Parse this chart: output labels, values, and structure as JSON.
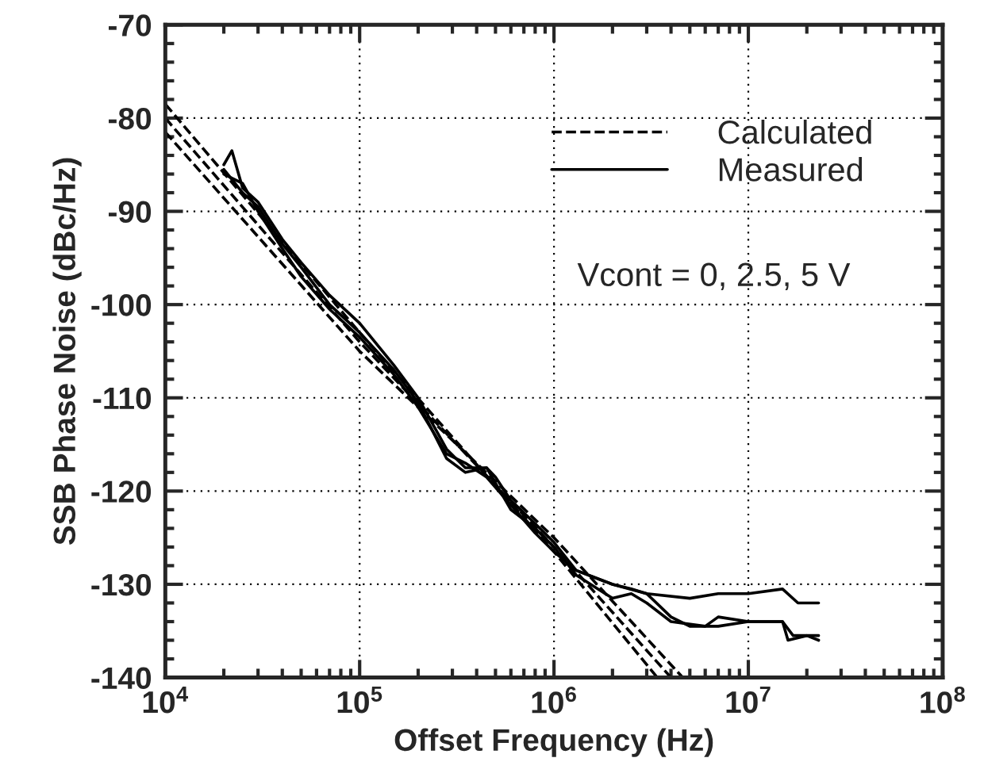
{
  "chart_data": {
    "type": "line",
    "xlabel": "Offset Frequency (Hz)",
    "ylabel": "SSB Phase Noise (dBc/Hz)",
    "log": "x",
    "xlim": [
      10000,
      100000000
    ],
    "ylim": [
      -140,
      -70
    ],
    "xticks": [
      {
        "value": 10000,
        "label": "10$^{4}$"
      },
      {
        "value": 100000,
        "label": "10$^{5}$"
      },
      {
        "value": 1000000,
        "label": "10$^{6}$"
      },
      {
        "value": 10000000,
        "label": "10$^{7}$"
      },
      {
        "value": 100000000,
        "label": "10$^{8}$"
      }
    ],
    "yticks": [
      -140,
      -130,
      -120,
      -110,
      -100,
      -90,
      -80,
      -70
    ],
    "grid": true,
    "legend": "top right",
    "annotations": [
      "Vcont = 0, 2.5, 5 V"
    ],
    "series": [
      {
        "name": "Calculated",
        "color": "#000000",
        "line_style": "dashed",
        "x": [
          10000,
          100000,
          1000000,
          3400000
        ],
        "values": [
          -78.5,
          -103,
          -126.5,
          -140
        ]
      },
      {
        "color": "#000000",
        "line_style": "dashed",
        "x": [
          10000,
          100000,
          1000000,
          4000000
        ],
        "values": [
          -80,
          -104,
          -126,
          -140
        ]
      },
      {
        "color": "#000000",
        "line_style": "dashed",
        "x": [
          10000,
          100000,
          1000000,
          4600000
        ],
        "values": [
          -81.5,
          -105,
          -125,
          -140
        ]
      },
      {
        "name": "Measured",
        "color": "#000000",
        "line_style": "solid",
        "x": [
          20000,
          22000,
          25000,
          30000,
          40000,
          50000,
          70000,
          100000,
          150000,
          200000,
          280000,
          350000,
          450000,
          500000,
          600000,
          800000,
          1000000,
          1300000,
          2000000,
          2500000,
          3000000,
          5000000,
          7000000,
          10000000,
          15000000,
          18000000,
          23000000
        ],
        "values": [
          -85,
          -83.5,
          -87.5,
          -89,
          -93,
          -95.5,
          -99,
          -102,
          -106.5,
          -110,
          -115.5,
          -117.5,
          -117.5,
          -118.5,
          -121,
          -123.5,
          -125.5,
          -128.5,
          -130,
          -130.5,
          -131,
          -131.5,
          -131,
          -131,
          -130.5,
          -132,
          -132
        ]
      },
      {
        "color": "#000000",
        "line_style": "solid",
        "x": [
          20000,
          25000,
          30000,
          40000,
          50000,
          70000,
          100000,
          150000,
          200000,
          280000,
          350000,
          450000,
          600000,
          800000,
          1000000,
          1300000,
          2000000,
          2500000,
          3000000,
          4000000,
          6000000,
          7000000,
          10000000,
          15000000,
          17000000,
          23000000
        ],
        "values": [
          -85.5,
          -88,
          -89.5,
          -93.5,
          -96,
          -100,
          -103,
          -107,
          -110.5,
          -116.5,
          -118,
          -117.5,
          -122,
          -124,
          -126,
          -129,
          -131.5,
          -131,
          -132,
          -134,
          -134.5,
          -133.5,
          -134,
          -134,
          -135.5,
          -135.5
        ]
      },
      {
        "color": "#000000",
        "line_style": "solid",
        "x": [
          20000,
          25000,
          30000,
          40000,
          50000,
          70000,
          100000,
          150000,
          200000,
          280000,
          350000,
          450000,
          600000,
          800000,
          1000000,
          1300000,
          2000000,
          3000000,
          4000000,
          5000000,
          7000000,
          10000000,
          15000000,
          16000000,
          20000000,
          23000000
        ],
        "values": [
          -86,
          -87,
          -90,
          -94,
          -97,
          -100.5,
          -103.5,
          -107.5,
          -111,
          -116,
          -117,
          -118.5,
          -121.5,
          -124.5,
          -126.5,
          -128.5,
          -130,
          -131,
          -133.5,
          -134.5,
          -134.5,
          -134,
          -134,
          -136,
          -135.5,
          -136
        ]
      }
    ]
  }
}
